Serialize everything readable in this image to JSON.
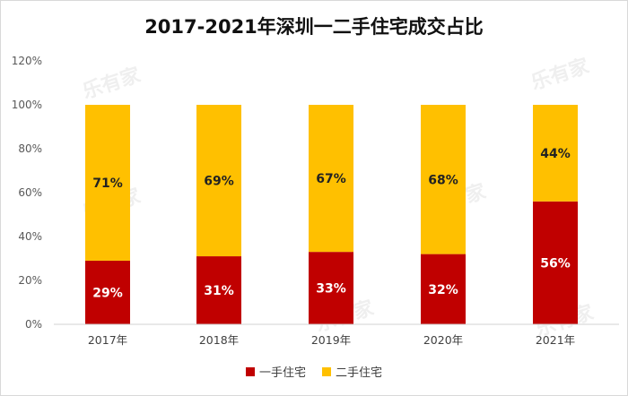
{
  "chart_data": {
    "type": "bar",
    "stacked": true,
    "title": "2017-2021年深圳一二手住宅成交占比",
    "categories": [
      "2017年",
      "2018年",
      "2019年",
      "2020年",
      "2021年"
    ],
    "series": [
      {
        "name": "一手住宅",
        "values": [
          29,
          31,
          33,
          32,
          56
        ],
        "labels": [
          "29%",
          "31%",
          "33%",
          "32%",
          "56%"
        ],
        "color": "#c00000"
      },
      {
        "name": "二手住宅",
        "values": [
          71,
          69,
          67,
          68,
          44
        ],
        "labels": [
          "71%",
          "69%",
          "67%",
          "68%",
          "44%"
        ],
        "color": "#ffc000"
      }
    ],
    "yticks": [
      "0%",
      "20%",
      "40%",
      "60%",
      "80%",
      "100%",
      "120%"
    ],
    "ylim": [
      0,
      120
    ],
    "legend_position": "bottom",
    "grid": false
  },
  "watermark": "乐有家"
}
